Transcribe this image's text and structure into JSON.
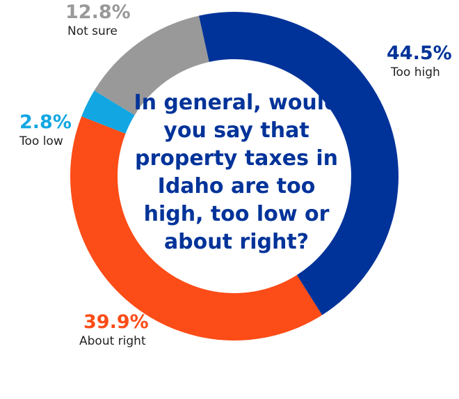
{
  "chart_data": {
    "type": "pie",
    "title": "In general, would you say that property taxes in Idaho are too high, too low or about right?",
    "slices": [
      {
        "label": "Too high",
        "value": 44.5,
        "value_label": "44.5%",
        "color": "#003399"
      },
      {
        "label": "About right",
        "value": 39.9,
        "value_label": "39.9%",
        "color": "#FC4C17"
      },
      {
        "label": "Too low",
        "value": 2.8,
        "value_label": "2.8%",
        "color": "#12A7E2"
      },
      {
        "label": "Not sure",
        "value": 12.8,
        "value_label": "12.8%",
        "color": "#999999"
      }
    ]
  }
}
